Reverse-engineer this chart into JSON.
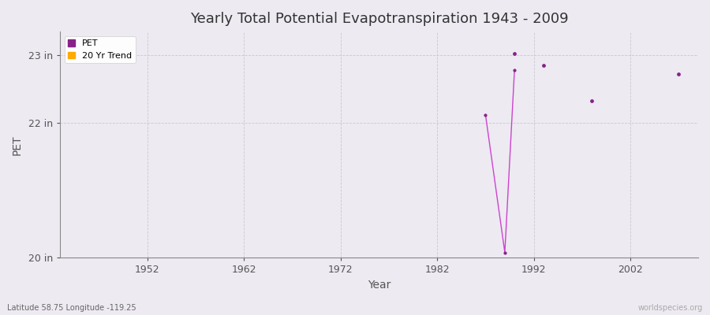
{
  "title": "Yearly Total Potential Evapotranspiration 1943 - 2009",
  "xlabel": "Year",
  "ylabel": "PET",
  "background_color": "#edeaf2",
  "plot_bg_color": "#edeaf2",
  "xlim": [
    1943,
    2009
  ],
  "ylim": [
    20.0,
    23.35
  ],
  "yticks": [
    20,
    22,
    23
  ],
  "ytick_labels": [
    "20 in",
    "22 in",
    "23 in"
  ],
  "xticks": [
    1952,
    1962,
    1972,
    1982,
    1992,
    2002
  ],
  "pet_line_color": "#cc44cc",
  "pet_dot_color": "#882288",
  "trend_color": "#ffaa00",
  "pet_line_x": [
    1987,
    1989,
    1990
  ],
  "pet_line_y": [
    22.12,
    20.08,
    22.78
  ],
  "pet_scatter_x": [
    1990,
    1993,
    1998,
    2007
  ],
  "pet_scatter_y": [
    23.02,
    22.85,
    22.32,
    22.72
  ],
  "subtitle": "Latitude 58.75 Longitude -119.25",
  "watermark": "worldspecies.org",
  "title_fontsize": 13,
  "label_fontsize": 10,
  "tick_fontsize": 9
}
